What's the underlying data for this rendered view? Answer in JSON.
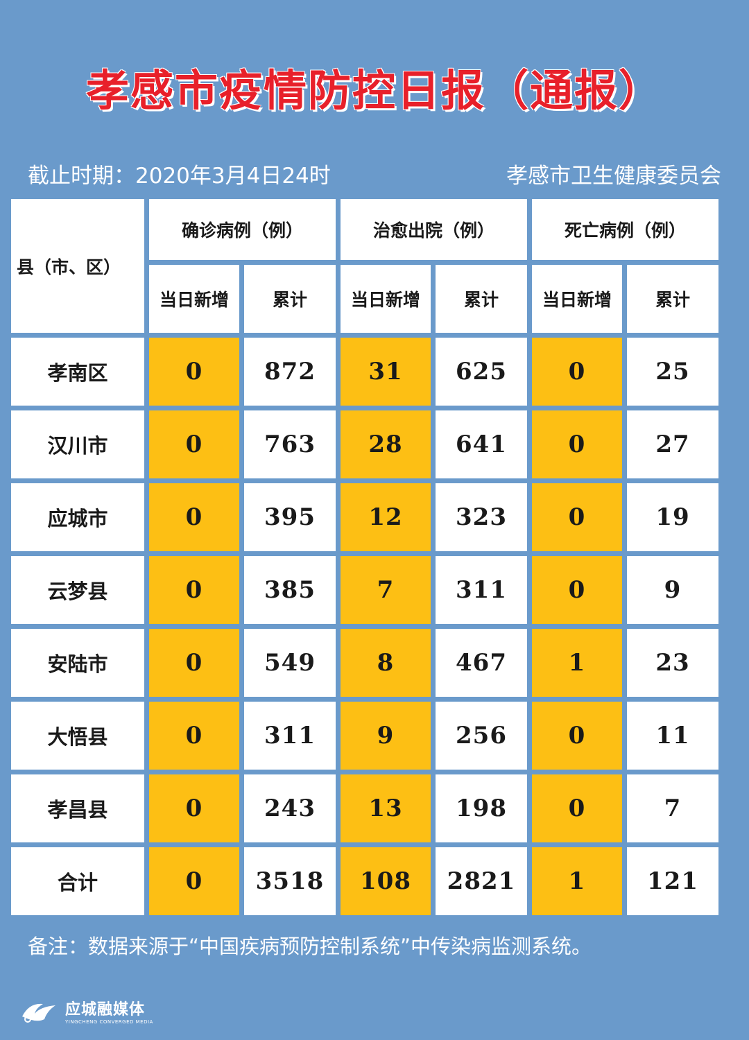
{
  "title": "孝感市疫情防控日报（通报）",
  "cutoff": "截止时期：2020年3月4日24时",
  "publisher": "孝感市卫生健康委员会",
  "headers": {
    "county": "县（市、区）",
    "confirmed": "确诊病例（例）",
    "recovered": "治愈出院（例）",
    "deaths": "死亡病例（例）",
    "new_today": "当日新增",
    "cumulative": "累计"
  },
  "rows": [
    {
      "name": "孝南区",
      "values": [
        "0",
        "872",
        "31",
        "625",
        "0",
        "25"
      ]
    },
    {
      "name": "汉川市",
      "values": [
        "0",
        "763",
        "28",
        "641",
        "0",
        "27"
      ]
    },
    {
      "name": "应城市",
      "values": [
        "0",
        "395",
        "12",
        "323",
        "0",
        "19"
      ]
    },
    {
      "name": "云梦县",
      "values": [
        "0",
        "385",
        "7",
        "311",
        "0",
        "9"
      ]
    },
    {
      "name": "安陆市",
      "values": [
        "0",
        "549",
        "8",
        "467",
        "1",
        "23"
      ]
    },
    {
      "name": "大悟县",
      "values": [
        "0",
        "311",
        "9",
        "256",
        "0",
        "11"
      ]
    },
    {
      "name": "孝昌县",
      "values": [
        "0",
        "243",
        "13",
        "198",
        "0",
        "7"
      ]
    },
    {
      "name": "合计",
      "values": [
        "0",
        "3518",
        "108",
        "2821",
        "1",
        "121"
      ]
    }
  ],
  "note": "备注：数据来源于“中国疾病预防控制系统”中传染病监测系统。",
  "logo": {
    "name": "应城融媒体",
    "sub": "YINGCHENG CONVERGED MEDIA"
  },
  "colors": {
    "background": "#6a9acb",
    "highlight": "#fdbf14",
    "title": "#e8202a"
  }
}
